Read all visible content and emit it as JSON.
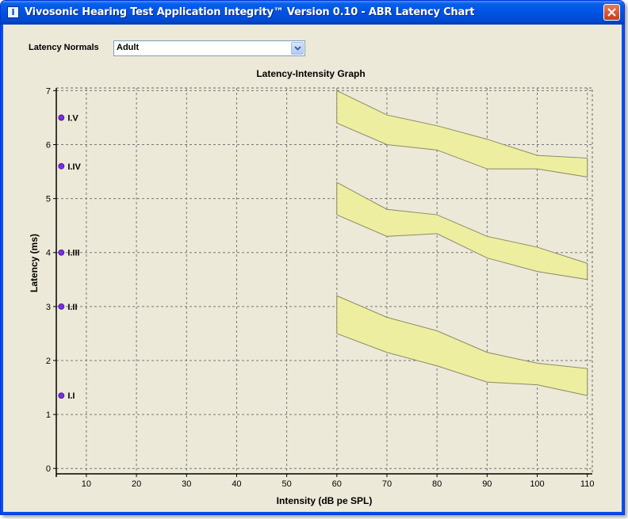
{
  "window": {
    "title": "Vivosonic Hearing Test Application Integrity™ Version 0.10 - ABR Latency Chart",
    "app_icon_glyph": "I",
    "close_icon": "close-x"
  },
  "controls": {
    "latency_normals_label": "Latency Normals",
    "latency_normals_value": "Adult"
  },
  "chart_data": {
    "type": "area",
    "title": "Latency-Intensity Graph",
    "xlabel": "Intensity (dB pe SPL)",
    "ylabel": "Latency (ms)",
    "xlim": [
      4,
      111
    ],
    "ylim": [
      -0.1,
      7.05
    ],
    "x_ticks": [
      10,
      20,
      30,
      40,
      50,
      60,
      70,
      80,
      90,
      100,
      110
    ],
    "y_ticks": [
      0,
      1,
      2,
      3,
      4,
      5,
      6,
      7
    ],
    "grid": true,
    "band_color": "#eeeea0",
    "marker_color": "#7b2ee6",
    "bands": [
      {
        "x": [
          60,
          70,
          80,
          90,
          100,
          110
        ],
        "upper": [
          7.0,
          6.55,
          6.35,
          6.1,
          5.8,
          5.75
        ],
        "lower": [
          6.4,
          6.0,
          5.9,
          5.55,
          5.55,
          5.4
        ]
      },
      {
        "x": [
          60,
          70,
          80,
          90,
          100,
          110
        ],
        "upper": [
          5.3,
          4.8,
          4.7,
          4.3,
          4.1,
          3.8
        ],
        "lower": [
          4.7,
          4.3,
          4.35,
          3.9,
          3.65,
          3.5
        ]
      },
      {
        "x": [
          60,
          70,
          80,
          90,
          100,
          110
        ],
        "upper": [
          3.2,
          2.8,
          2.55,
          2.15,
          1.95,
          1.85
        ],
        "lower": [
          2.5,
          2.15,
          1.9,
          1.6,
          1.55,
          1.35
        ]
      }
    ],
    "markers": [
      {
        "label": "I.V",
        "x": 5,
        "y": 6.5
      },
      {
        "label": "I.IV",
        "x": 5,
        "y": 5.6
      },
      {
        "label": "I.III",
        "x": 5,
        "y": 4.0
      },
      {
        "label": "I.II",
        "x": 5,
        "y": 3.0
      },
      {
        "label": "I.I",
        "x": 5,
        "y": 1.35
      }
    ]
  }
}
